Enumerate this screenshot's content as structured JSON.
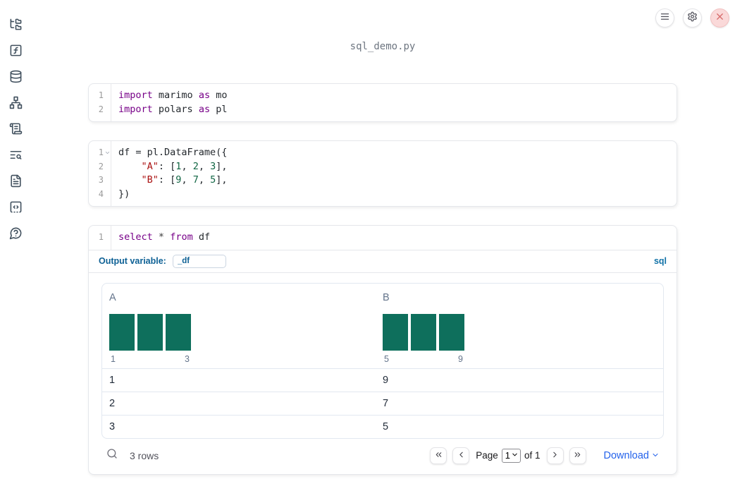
{
  "header": {
    "filename": "sql_demo.py",
    "buttons": [
      {
        "name": "notebook-menu-button",
        "icon": "menu-icon"
      },
      {
        "name": "settings-button",
        "icon": "gear-icon"
      },
      {
        "name": "shutdown-button",
        "icon": "close-icon"
      }
    ]
  },
  "sidebar": {
    "items": [
      {
        "name": "file-explorer-button",
        "icon": "folder-tree-icon"
      },
      {
        "name": "functions-button",
        "icon": "function-square-icon"
      },
      {
        "name": "datasources-button",
        "icon": "database-icon"
      },
      {
        "name": "dependency-graph-button",
        "icon": "network-icon"
      },
      {
        "name": "logs-button",
        "icon": "scroll-text-icon"
      },
      {
        "name": "search-panel-button",
        "icon": "text-search-icon"
      },
      {
        "name": "documentation-button",
        "icon": "file-text-icon"
      },
      {
        "name": "snippets-button",
        "icon": "code-square-icon"
      },
      {
        "name": "help-button",
        "icon": "help-circle-icon"
      }
    ]
  },
  "editors": [
    {
      "id": "cell-imports",
      "lines": [
        {
          "num": "1",
          "fold": false,
          "tokens": [
            [
              "k",
              "import"
            ],
            [
              "p",
              " marimo "
            ],
            [
              "k",
              "as"
            ],
            [
              "p",
              " mo"
            ]
          ]
        },
        {
          "num": "2",
          "fold": false,
          "tokens": [
            [
              "k",
              "import"
            ],
            [
              "p",
              " polars "
            ],
            [
              "k",
              "as"
            ],
            [
              "p",
              " pl"
            ]
          ]
        }
      ]
    },
    {
      "id": "cell-dataframe",
      "lines": [
        {
          "num": "1",
          "fold": true,
          "tokens": [
            [
              "p",
              "df = pl.DataFrame({"
            ]
          ]
        },
        {
          "num": "2",
          "fold": false,
          "tokens": [
            [
              "p",
              "    "
            ],
            [
              "s",
              "\"A\""
            ],
            [
              "p",
              ": ["
            ],
            [
              "n",
              "1"
            ],
            [
              "p",
              ", "
            ],
            [
              "n",
              "2"
            ],
            [
              "p",
              ", "
            ],
            [
              "n",
              "3"
            ],
            [
              "p",
              "],"
            ]
          ]
        },
        {
          "num": "3",
          "fold": false,
          "tokens": [
            [
              "p",
              "    "
            ],
            [
              "s",
              "\"B\""
            ],
            [
              "p",
              ": ["
            ],
            [
              "n",
              "9"
            ],
            [
              "p",
              ", "
            ],
            [
              "n",
              "7"
            ],
            [
              "p",
              ", "
            ],
            [
              "n",
              "5"
            ],
            [
              "p",
              "],"
            ]
          ]
        },
        {
          "num": "4",
          "fold": false,
          "tokens": [
            [
              "p",
              "})"
            ]
          ]
        }
      ]
    },
    {
      "id": "cell-sql",
      "lines": [
        {
          "num": "1",
          "fold": false,
          "tokens": [
            [
              "k",
              "select"
            ],
            [
              "p",
              " "
            ],
            [
              "o",
              "*"
            ],
            [
              "p",
              " "
            ],
            [
              "k",
              "from"
            ],
            [
              "p",
              " df"
            ]
          ]
        }
      ]
    }
  ],
  "sql_cell": {
    "output_variable_label": "Output variable:",
    "output_variable_value": "_df",
    "language_badge": "sql"
  },
  "table": {
    "columns": [
      {
        "name": "A",
        "hist": {
          "bars": [
            1,
            1,
            1
          ],
          "labels": [
            "1",
            "3"
          ]
        }
      },
      {
        "name": "B",
        "hist": {
          "bars": [
            1,
            1,
            1
          ],
          "labels": [
            "5",
            "9"
          ]
        }
      }
    ],
    "rows": [
      [
        "1",
        "9"
      ],
      [
        "2",
        "7"
      ],
      [
        "3",
        "5"
      ]
    ],
    "footer": {
      "row_count": "3 rows",
      "page_label": "Page",
      "page_value": "1",
      "of_label": "of 1",
      "download_label": "Download"
    }
  },
  "colors": {
    "keyword": "#770088",
    "string": "#aa1111",
    "number": "#116644",
    "histogram_bar": "#0e6f5c",
    "accent_blue": "#0e6195",
    "sql_badge_blue": "#1273a8",
    "download_link": "#2563eb",
    "close_button_red": "#d66a6a",
    "sidebar_icon": "#41505e"
  }
}
